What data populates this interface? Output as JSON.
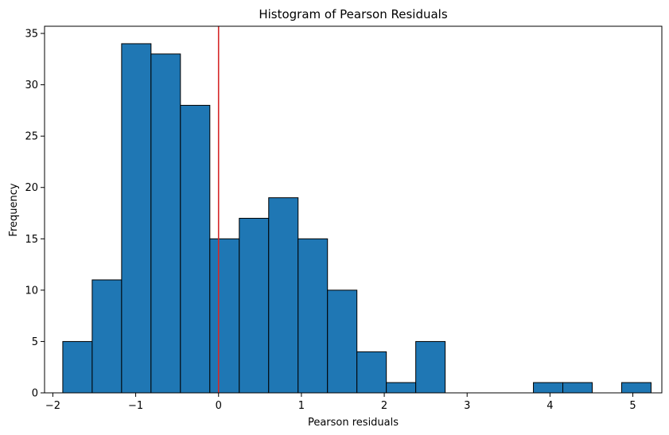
{
  "chart_data": {
    "type": "bar",
    "title": "Histogram of Pearson Residuals",
    "xlabel": "Pearson residuals",
    "ylabel": "Frequency",
    "xlim": [
      -2.1,
      5.35
    ],
    "ylim": [
      0,
      35.7
    ],
    "xticks": [
      -2,
      -1,
      0,
      1,
      2,
      3,
      4,
      5
    ],
    "xtick_labels": [
      "−2",
      "−1",
      "0",
      "1",
      "2",
      "3",
      "4",
      "5"
    ],
    "yticks": [
      0,
      5,
      10,
      15,
      20,
      25,
      30,
      35
    ],
    "ytick_labels": [
      "0",
      "5",
      "10",
      "15",
      "20",
      "25",
      "30",
      "35"
    ],
    "bins": {
      "start": -1.88,
      "width": 0.355,
      "counts": [
        5,
        11,
        34,
        33,
        28,
        15,
        17,
        19,
        15,
        10,
        4,
        1,
        5,
        0,
        0,
        0,
        1,
        1,
        0,
        1
      ]
    },
    "bar_color": "#1f77b4",
    "bar_edge_color": "#000000",
    "reference_line": {
      "x": 0,
      "color": "#d62728"
    },
    "grid": false
  }
}
